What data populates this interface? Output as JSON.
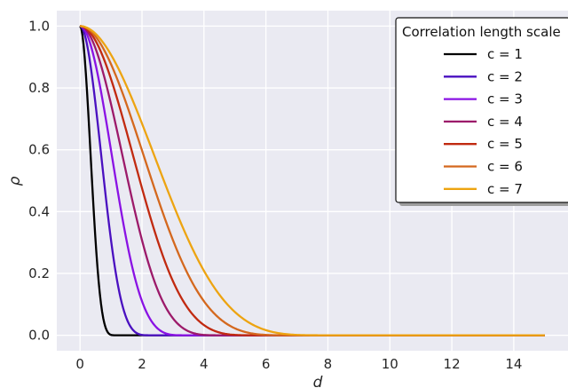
{
  "chart_data": {
    "type": "line",
    "xlabel": "d",
    "ylabel": "ρ",
    "xlim": [
      -0.75,
      15.75
    ],
    "ylim": [
      -0.05,
      1.05
    ],
    "x_ticks": [
      0,
      2,
      4,
      6,
      8,
      10,
      12,
      14
    ],
    "y_ticks": [
      0.0,
      0.2,
      0.4,
      0.6,
      0.8,
      1.0
    ],
    "x_tick_labels": [
      "0",
      "2",
      "4",
      "6",
      "8",
      "10",
      "12",
      "14"
    ],
    "y_tick_labels": [
      "0.0",
      "0.2",
      "0.4",
      "0.6",
      "0.8",
      "1.0"
    ],
    "x_range": [
      0,
      15
    ],
    "grid": true,
    "legend": {
      "title": "Correlation length scale",
      "placement": "top-right"
    },
    "series": [
      {
        "name": "c = 1",
        "c": 1,
        "color": "#000000"
      },
      {
        "name": "c = 2",
        "c": 2,
        "color": "#4a10c0"
      },
      {
        "name": "c = 3",
        "c": 3,
        "color": "#8a12e4"
      },
      {
        "name": "c = 4",
        "c": 4,
        "color": "#9c1a6a"
      },
      {
        "name": "c = 5",
        "c": 5,
        "color": "#c12a10"
      },
      {
        "name": "c = 6",
        "c": 6,
        "color": "#d4681e"
      },
      {
        "name": "c = 7",
        "c": 7,
        "color": "#eda411"
      }
    ]
  },
  "colors": {
    "plot_background": "#eaeaf2",
    "grid": "#ffffff",
    "text": "#262626"
  }
}
